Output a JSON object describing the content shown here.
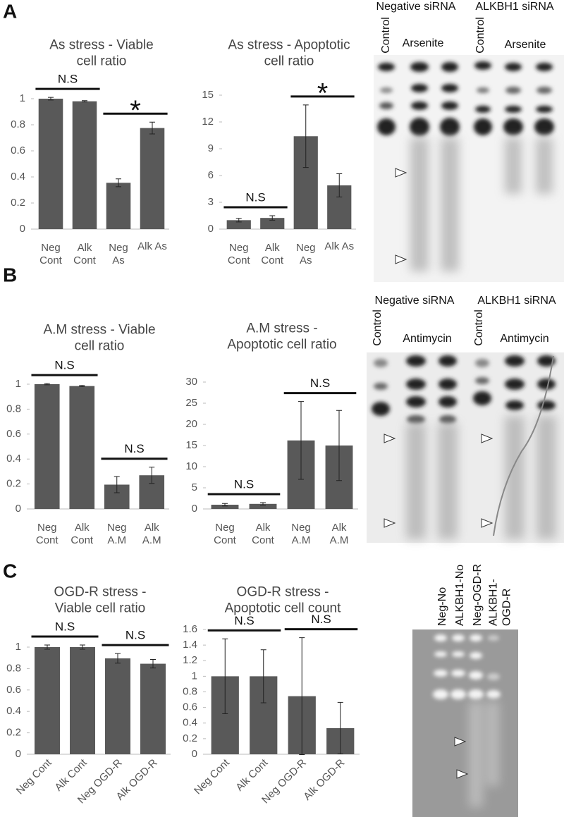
{
  "panel_labels": [
    "A",
    "B",
    "C"
  ],
  "chart_data": [
    {
      "type": "bar",
      "title": "As stress - Viable\ncell ratio",
      "categories": [
        "Neg\nCont",
        "Alk\nCont",
        "Neg\nAs",
        "Alk As"
      ],
      "values": [
        1.0,
        0.98,
        0.355,
        0.775
      ],
      "errors": [
        0.01,
        0.005,
        0.03,
        0.045
      ],
      "color": "#595959",
      "ylim": [
        0,
        1
      ],
      "yticks": [
        0,
        0.2,
        0.4,
        0.6,
        0.8,
        1
      ],
      "annotations": [
        {
          "text": "N.S",
          "categories": [
            0,
            1
          ]
        },
        {
          "text": "*",
          "categories": [
            2,
            3
          ]
        }
      ]
    },
    {
      "type": "bar",
      "title": "As stress - Apoptotic\ncell ratio",
      "categories": [
        "Neg\nCont",
        "Alk\nCont",
        "Neg\nAs",
        "Alk As"
      ],
      "values": [
        1.0,
        1.25,
        10.4,
        4.9
      ],
      "errors": [
        0.2,
        0.25,
        3.5,
        1.3
      ],
      "color": "#595959",
      "ylim": [
        0,
        15
      ],
      "yticks": [
        0,
        3,
        6,
        9,
        12,
        15
      ],
      "annotations": [
        {
          "text": "N.S",
          "categories": [
            0,
            1
          ]
        },
        {
          "text": "*",
          "categories": [
            2,
            3
          ]
        }
      ]
    },
    {
      "type": "bar",
      "title": "A.M stress - Viable\ncell ratio",
      "categories": [
        "Neg\nCont",
        "Alk\nCont",
        "Neg\nA.M",
        "Alk\nA.M"
      ],
      "values": [
        1.0,
        0.985,
        0.195,
        0.27
      ],
      "errors": [
        0.005,
        0.005,
        0.065,
        0.065
      ],
      "color": "#595959",
      "ylim": [
        0,
        1
      ],
      "yticks": [
        0,
        0.2,
        0.4,
        0.6,
        0.8,
        1
      ],
      "annotations": [
        {
          "text": "N.S",
          "categories": [
            0,
            1
          ]
        },
        {
          "text": "N.S",
          "categories": [
            2,
            3
          ]
        }
      ]
    },
    {
      "type": "bar",
      "title": "A.M stress -\nApoptotic cell ratio",
      "categories": [
        "Neg\nCont",
        "Alk\nCont",
        "Neg\nA.M",
        "Alk\nA.M"
      ],
      "values": [
        1.0,
        1.2,
        16.2,
        15.0
      ],
      "errors": [
        0.3,
        0.3,
        9.2,
        8.3
      ],
      "color": "#595959",
      "ylim": [
        0,
        30
      ],
      "yticks": [
        0,
        5,
        10,
        15,
        20,
        25,
        30
      ],
      "annotations": [
        {
          "text": "N.S",
          "categories": [
            0,
            1
          ]
        },
        {
          "text": "N.S",
          "categories": [
            2,
            3
          ]
        }
      ]
    },
    {
      "type": "bar",
      "title": "OGD-R stress -\nViable cell ratio",
      "categories": [
        "Neg Cont",
        "Alk Cont",
        "Neg OGD-R",
        "Alk OGD-R"
      ],
      "values": [
        1.0,
        1.0,
        0.895,
        0.845
      ],
      "errors": [
        0.02,
        0.02,
        0.045,
        0.04
      ],
      "color": "#595959",
      "ylim": [
        0,
        1
      ],
      "yticks": [
        0,
        0.2,
        0.4,
        0.6,
        0.8,
        1
      ],
      "rotate_labels": true,
      "annotations": [
        {
          "text": "N.S",
          "categories": [
            0,
            1
          ]
        },
        {
          "text": "N.S",
          "categories": [
            2,
            3
          ]
        }
      ]
    },
    {
      "type": "bar",
      "title": "OGD-R stress -\nApoptotic cell count",
      "categories": [
        "Neg Cont",
        "Alk Cont",
        "Neg OGD-R",
        "Alk OGD-R"
      ],
      "values": [
        1.0,
        1.0,
        0.745,
        0.335
      ],
      "errors": [
        0.48,
        0.34,
        0.75,
        0.33
      ],
      "color": "#595959",
      "ylim": [
        0,
        1.6
      ],
      "yticks": [
        0,
        0.2,
        0.4,
        0.6,
        0.8,
        1,
        1.2,
        1.4,
        1.6
      ],
      "rotate_labels": true,
      "annotations": [
        {
          "text": "N.S",
          "categories": [
            0,
            1
          ]
        },
        {
          "text": "N.S",
          "categories": [
            2,
            3
          ]
        }
      ]
    }
  ],
  "gels": [
    {
      "groups": [
        "Negative siRNA",
        "ALKBH1 siRNA"
      ],
      "lanes": [
        "Control",
        "Arsenite",
        "Control",
        "Arsenite"
      ]
    },
    {
      "groups": [
        "Negative siRNA",
        "ALKBH1 siRNA"
      ],
      "lanes": [
        "Control",
        "Antimycin",
        "Control",
        "Antimycin"
      ]
    },
    {
      "lanes": [
        "Neg-No",
        "ALKBH1-No",
        "Neg-OGD-R",
        "ALKBH1-\nOGD-R"
      ]
    }
  ]
}
